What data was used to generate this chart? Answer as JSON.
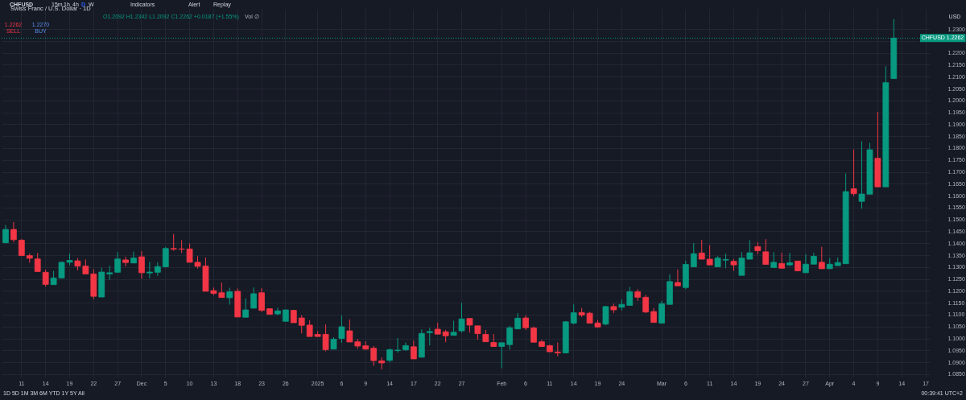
{
  "chart_data": {
    "type": "candlestick",
    "title": "Swiss Franc / U.S. Dollar · 1D",
    "categories": [
      null,
      null,
      "11",
      null,
      null,
      "14",
      null,
      null,
      "19",
      null,
      null,
      "22",
      null,
      null,
      "27",
      null,
      null,
      "Dec",
      null,
      null,
      "5",
      null,
      null,
      "10",
      null,
      null,
      "13",
      null,
      null,
      "18",
      null,
      null,
      "23",
      null,
      null,
      "26",
      null,
      null,
      null,
      "2025",
      null,
      null,
      "6",
      null,
      null,
      "9",
      null,
      null,
      "14",
      null,
      null,
      "17",
      null,
      null,
      "22",
      null,
      null,
      "27",
      null,
      null,
      null,
      null,
      "Feb",
      null,
      null,
      "6",
      null,
      null,
      "11",
      null,
      null,
      "14",
      null,
      null,
      "19",
      null,
      null,
      "24",
      null,
      null,
      null,
      null,
      "Mar",
      null,
      null,
      "6",
      null,
      null,
      "11",
      null,
      null,
      "14",
      null,
      null,
      "19",
      null,
      null,
      "24",
      null,
      null,
      "27",
      null,
      null,
      "Apr",
      null,
      null,
      "4",
      null,
      null,
      "9",
      null,
      null,
      "14",
      null,
      null,
      "17"
    ],
    "ohlc": [
      [
        1.1402,
        1.1477,
        1.14,
        1.1458
      ],
      [
        1.1458,
        1.1489,
        1.1405,
        1.1415
      ],
      [
        1.1413,
        1.1417,
        1.1348,
        1.1348
      ],
      [
        1.1348,
        1.1357,
        1.1318,
        1.1337
      ],
      [
        1.1334,
        1.1359,
        1.1281,
        1.1281
      ],
      [
        1.1278,
        1.1289,
        1.1218,
        1.1227
      ],
      [
        1.1226,
        1.1284,
        1.1226,
        1.1254
      ],
      [
        1.1254,
        1.1323,
        1.1252,
        1.132
      ],
      [
        1.132,
        1.1357,
        1.1308,
        1.1328
      ],
      [
        1.1326,
        1.1337,
        1.1286,
        1.1304
      ],
      [
        1.1304,
        1.1332,
        1.1271,
        1.1271
      ],
      [
        1.1271,
        1.1291,
        1.1165,
        1.1177
      ],
      [
        1.1174,
        1.1297,
        1.1174,
        1.1279
      ],
      [
        1.1271,
        1.1305,
        1.1246,
        1.1276
      ],
      [
        1.1278,
        1.1363,
        1.1278,
        1.1334
      ],
      [
        1.133,
        1.1343,
        1.1303,
        1.1319
      ],
      [
        1.1317,
        1.1365,
        1.1317,
        1.1338
      ],
      [
        1.1343,
        1.1367,
        1.1251,
        1.1276
      ],
      [
        1.1275,
        1.1322,
        1.1253,
        1.1279
      ],
      [
        1.1278,
        1.132,
        1.1263,
        1.1302
      ],
      [
        1.1301,
        1.1385,
        1.1301,
        1.1378
      ],
      [
        1.1378,
        1.1439,
        1.1368,
        1.1375
      ],
      [
        1.1376,
        1.1413,
        1.1359,
        1.1375
      ],
      [
        1.1376,
        1.1399,
        1.132,
        1.132
      ],
      [
        1.132,
        1.1346,
        1.1294,
        1.1303
      ],
      [
        1.1304,
        1.134,
        1.1198,
        1.1198
      ],
      [
        1.1201,
        1.1214,
        1.1182,
        1.1189
      ],
      [
        1.1192,
        1.1235,
        1.1172,
        1.1172
      ],
      [
        1.1171,
        1.1213,
        1.1142,
        1.1196
      ],
      [
        1.1198,
        1.121,
        1.109,
        1.109
      ],
      [
        1.1089,
        1.1168,
        1.1089,
        1.112
      ],
      [
        1.1127,
        1.1214,
        1.1127,
        1.1188
      ],
      [
        1.1192,
        1.1211,
        1.1111,
        1.1118
      ],
      [
        1.1125,
        1.1125,
        1.1101,
        1.1101
      ],
      [
        1.1103,
        1.1129,
        1.1097,
        1.1116
      ],
      [
        1.1072,
        1.112,
        1.1072,
        1.112
      ],
      [
        1.1118,
        1.112,
        1.1066,
        1.1066
      ],
      [
        1.1086,
        1.1098,
        1.1021,
        1.1055
      ],
      [
        1.1056,
        1.1076,
        1.1008,
        1.1008
      ],
      [
        1.1017,
        1.1031,
        1.1008,
        1.1008
      ],
      [
        1.1017,
        1.1059,
        1.0946,
        1.0953
      ],
      [
        1.0955,
        1.1005,
        1.0955,
        1.0997
      ],
      [
        1.1,
        1.1097,
        1.0982,
        1.1049
      ],
      [
        1.1032,
        1.108,
        1.0985,
        1.0985
      ],
      [
        1.0986,
        1.0998,
        1.0957,
        1.0968
      ],
      [
        1.0969,
        1.0988,
        1.0953,
        1.0955
      ],
      [
        1.0959,
        1.0968,
        1.0885,
        1.0907
      ],
      [
        1.0906,
        1.092,
        1.087,
        1.0897
      ],
      [
        1.0908,
        1.0957,
        1.09,
        1.0953
      ],
      [
        1.0949,
        1.1002,
        1.094,
        1.0951
      ],
      [
        1.0952,
        1.0983,
        1.0948,
        1.097
      ],
      [
        1.0965,
        1.0991,
        1.0914,
        1.0914
      ],
      [
        1.0921,
        1.1038,
        1.0921,
        1.1021
      ],
      [
        1.1024,
        1.1045,
        1.0971,
        1.1029
      ],
      [
        1.1039,
        1.1066,
        1.1018,
        1.1018
      ],
      [
        1.1028,
        1.1036,
        1.0984,
        1.1011
      ],
      [
        1.1013,
        1.1074,
        1.1013,
        1.1026
      ],
      [
        1.1032,
        1.115,
        1.1025,
        1.1082
      ],
      [
        1.1084,
        1.1084,
        1.1025,
        1.1056
      ],
      [
        1.1053,
        1.1053,
        1.0995,
        1.102
      ],
      [
        1.1017,
        1.1036,
        1.0986,
        1.0986
      ],
      [
        1.0983,
        1.1019,
        1.0966,
        1.0966
      ],
      [
        1.0966,
        1.0982,
        1.0875,
        1.0982
      ],
      [
        1.0974,
        1.1053,
        1.0953,
        1.1045
      ],
      [
        1.104,
        1.1106,
        1.104,
        1.1085
      ],
      [
        1.1086,
        1.1097,
        1.1036,
        1.1045
      ],
      [
        1.1044,
        1.105,
        1.0984,
        1.0984
      ],
      [
        1.0986,
        1.0994,
        1.0964,
        1.0966
      ],
      [
        1.097,
        1.0973,
        1.0944,
        1.0944
      ],
      [
        1.0943,
        1.0983,
        1.0925,
        1.0939
      ],
      [
        1.0939,
        1.1073,
        1.0939,
        1.107
      ],
      [
        1.1064,
        1.1143,
        1.1059,
        1.1108
      ],
      [
        1.1109,
        1.1128,
        1.109,
        1.1098
      ],
      [
        1.1106,
        1.1112,
        1.1064,
        1.1064
      ],
      [
        1.1065,
        1.1077,
        1.1046,
        1.1048
      ],
      [
        1.106,
        1.1137,
        1.1055,
        1.1134
      ],
      [
        1.1134,
        1.1146,
        1.1106,
        1.112
      ],
      [
        1.1131,
        1.1164,
        1.1117,
        1.1143
      ],
      [
        1.1139,
        1.1216,
        1.1139,
        1.1196
      ],
      [
        1.1196,
        1.1207,
        1.1158,
        1.1173
      ],
      [
        1.1173,
        1.1183,
        1.1106,
        1.1111
      ],
      [
        1.1113,
        1.1128,
        1.1067,
        1.1067
      ],
      [
        1.1064,
        1.1158,
        1.1064,
        1.1146
      ],
      [
        1.1143,
        1.1269,
        1.1143,
        1.1239
      ],
      [
        1.1235,
        1.129,
        1.1221,
        1.1221
      ],
      [
        1.1214,
        1.1327,
        1.1207,
        1.1311
      ],
      [
        1.1301,
        1.1401,
        1.1301,
        1.1356
      ],
      [
        1.1359,
        1.1414,
        1.1333,
        1.1333
      ],
      [
        1.1333,
        1.1392,
        1.1309,
        1.1309
      ],
      [
        1.1301,
        1.1346,
        1.1301,
        1.1338
      ],
      [
        1.1329,
        1.1356,
        1.1295,
        1.1332
      ],
      [
        1.1324,
        1.1334,
        1.1284,
        1.1309
      ],
      [
        1.1265,
        1.1363,
        1.1265,
        1.1338
      ],
      [
        1.1333,
        1.1413,
        1.1333,
        1.136
      ],
      [
        1.1386,
        1.1405,
        1.1354,
        1.1369
      ],
      [
        1.1364,
        1.1417,
        1.1311,
        1.1311
      ],
      [
        1.1298,
        1.1363,
        1.1298,
        1.132
      ],
      [
        1.1315,
        1.136,
        1.1295,
        1.1295
      ],
      [
        1.1309,
        1.1359,
        1.1304,
        1.1318
      ],
      [
        1.1325,
        1.1325,
        1.1284,
        1.1284
      ],
      [
        1.1276,
        1.1354,
        1.1276,
        1.1312
      ],
      [
        1.1312,
        1.136,
        1.1312,
        1.1345
      ],
      [
        1.132,
        1.1385,
        1.1293,
        1.1293
      ],
      [
        1.1293,
        1.1338,
        1.1293,
        1.1312
      ],
      [
        1.1306,
        1.134,
        1.1306,
        1.1319
      ],
      [
        1.1314,
        1.1693,
        1.1314,
        1.1617
      ],
      [
        1.1629,
        1.1794,
        1.1599,
        1.1608
      ],
      [
        1.1576,
        1.1828,
        1.1545,
        1.1607
      ],
      [
        1.1606,
        1.1822,
        1.1606,
        1.1793
      ],
      [
        1.1757,
        1.1952,
        1.1637,
        1.1637
      ],
      [
        1.1637,
        1.2144,
        1.1637,
        1.2075
      ],
      [
        1.2092,
        1.2342,
        1.2092,
        1.2262
      ],
      null,
      null,
      null,
      null
    ],
    "colors": [
      "#089981",
      "#f23645",
      "#f23645",
      "#f23645",
      "#f23645",
      "#f23645",
      "#089981",
      "#089981",
      "#089981",
      "#f23645",
      "#f23645",
      "#f23645",
      "#089981",
      "#089981",
      "#089981",
      "#f23645",
      "#089981",
      "#f23645",
      "#089981",
      "#089981",
      "#089981",
      "#f23645",
      "#f23645",
      "#f23645",
      "#f23645",
      "#f23645",
      "#f23645",
      "#f23645",
      "#089981",
      "#f23645",
      "#089981",
      "#089981",
      "#f23645",
      "#f23645",
      "#089981",
      "#089981",
      "#f23645",
      "#f23645",
      "#f23645",
      "#f23645",
      "#f23645",
      "#089981",
      "#089981",
      "#f23645",
      "#f23645",
      "#f23645",
      "#f23645",
      "#f23645",
      "#089981",
      "#089981",
      "#089981",
      "#f23645",
      "#089981",
      "#089981",
      "#f23645",
      "#f23645",
      "#089981",
      "#089981",
      "#f23645",
      "#f23645",
      "#f23645",
      "#f23645",
      "#089981",
      "#089981",
      "#089981",
      "#f23645",
      "#f23645",
      "#f23645",
      "#f23645",
      "#f23645",
      "#089981",
      "#089981",
      "#f23645",
      "#f23645",
      "#f23645",
      "#089981",
      "#f23645",
      "#089981",
      "#089981",
      "#f23645",
      "#f23645",
      "#f23645",
      "#089981",
      "#089981",
      "#f23645",
      "#089981",
      "#089981",
      "#f23645",
      "#f23645",
      "#089981",
      "#089981",
      "#f23645",
      "#089981",
      "#089981",
      "#f23645",
      "#f23645",
      "#089981",
      "#f23645",
      "#089981",
      "#f23645",
      "#089981",
      "#089981",
      "#f23645",
      "#089981",
      "#089981",
      "#089981",
      "#f23645",
      "#089981",
      "#089981",
      "#f23645",
      "#089981",
      "#089981",
      null,
      null,
      null,
      null
    ],
    "ylim": [
      1.0836,
      1.2385
    ],
    "yticks": [
      {
        "value": 1.085,
        "label": "1.0850"
      },
      {
        "value": 1.09,
        "label": "1.0900"
      },
      {
        "value": 1.095,
        "label": "1.0950"
      },
      {
        "value": 1.1,
        "label": "1.1000"
      },
      {
        "value": 1.105,
        "label": "1.1050"
      },
      {
        "value": 1.11,
        "label": "1.1100"
      },
      {
        "value": 1.115,
        "label": "1.1150"
      },
      {
        "value": 1.12,
        "label": "1.1200"
      },
      {
        "value": 1.125,
        "label": "1.1250"
      },
      {
        "value": 1.13,
        "label": "1.1300"
      },
      {
        "value": 1.135,
        "label": "1.1350"
      },
      {
        "value": 1.14,
        "label": "1.1400"
      },
      {
        "value": 1.145,
        "label": "1.1450"
      },
      {
        "value": 1.15,
        "label": "1.1500"
      },
      {
        "value": 1.155,
        "label": "1.1550"
      },
      {
        "value": 1.16,
        "label": "1.1600"
      },
      {
        "value": 1.165,
        "label": "1.1650"
      },
      {
        "value": 1.17,
        "label": "1.1700"
      },
      {
        "value": 1.175,
        "label": "1.1750"
      },
      {
        "value": 1.18,
        "label": "1.1800"
      },
      {
        "value": 1.185,
        "label": "1.1850"
      },
      {
        "value": 1.19,
        "label": "1.1900"
      },
      {
        "value": 1.195,
        "label": "1.1950"
      },
      {
        "value": 1.2,
        "label": "1.2000"
      },
      {
        "value": 1.205,
        "label": "1.2050"
      },
      {
        "value": 1.21,
        "label": "1.2100"
      },
      {
        "value": 1.215,
        "label": "1.2150"
      },
      {
        "value": 1.22,
        "label": "1.2200"
      },
      {
        "value": 1.225,
        "label": null
      },
      {
        "value": 1.23,
        "label": "1.2300"
      }
    ],
    "grid": true,
    "ref_lines": [
      {
        "axis": "y",
        "value": 1.2262,
        "label": "CHFUSD 1.2262",
        "color": "#089981",
        "line_style": "dotted"
      }
    ],
    "annotations": [
      "CHFUSD",
      "15m",
      "1h",
      "4h",
      "D",
      "W",
      "Indicators",
      "Alert",
      "Replay",
      "O1.2092 H1.2342 L1.2092 C1.2262 +0.0187 (+1.55%)",
      "Vol ∅",
      "1.2262",
      "SELL",
      "1.2270",
      "BUY",
      "USD",
      "1D 5D 1M 3M 6M YTD 1Y 5Y All",
      "00:39:41 UTC+2"
    ]
  }
}
